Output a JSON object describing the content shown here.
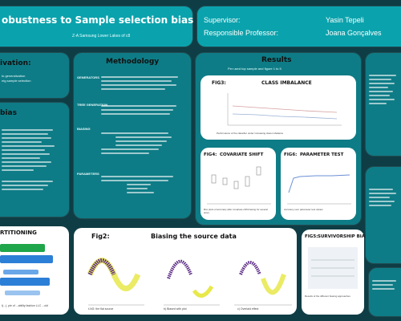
{
  "header": {
    "title": "obustness to Sample selection bias",
    "subtitle": "Z-A Samsung Lower Lakes of c8",
    "supervisor_label": "Supervisor:",
    "professor_label": "Responsible Professor:",
    "supervisor_name": "Yasin Tepeli",
    "professor_name": "Joana Gonçalves"
  },
  "left": {
    "motivation_title": "ivation:",
    "motivation_lines": [
      "to generalization",
      "ntg sample selection"
    ],
    "bias_title": "bias",
    "partitioning_title": "RTITIONING",
    "partitioning_caption": "t(...), pie of ...ability fashion LLC ...old"
  },
  "methodology": {
    "title": "Methodology",
    "labels": [
      "GENERATORS",
      "TREE GENERATION",
      "BIASING",
      "PARAMETERS"
    ],
    "items": [
      "Imbalanced",
      "Covariate",
      "Knn",
      "Parameter",
      "Dataset",
      "Gaussian",
      "Flat KNN",
      "Ruled-out K-NN",
      "Bins: Linear",
      "Sample: Bins",
      "Parameter",
      "Combo",
      "Single",
      "All 1K, 0%"
    ]
  },
  "fig2": {
    "title": "Fig2:",
    "subtitle": "Biasing the source data",
    "captions": [
      "t-NG: the flat source",
      "b) Biased with plot",
      "c) Overlaid effect"
    ]
  },
  "results": {
    "title": "Results",
    "subtitle": "Per used top sample and figure 1 to 5",
    "fig3_label": "FIG3:",
    "fig3_title": "CLASS IMBALANCE",
    "fig3_caption": "Performance of the classifier under increasing class imbalance",
    "fig4_label": "FIG4:",
    "fig4_title": "COVARIATE SHIFT",
    "fig4_caption": "Box plots of accuracy after covariate shift biasing for several sizes",
    "fig5_label": "FIG5:",
    "fig5_title": "SURVIVORSHIP BIAS",
    "fig5_caption": "Results of the different biasing approaches",
    "fig6_label": "FIG6:",
    "fig6_title": "PARAMETER TEST",
    "fig6_caption": "Accuracy over parameter test values"
  },
  "colors": {
    "background": "#0f3d45",
    "panel": "#0e7c86",
    "banner": "#0aa3ad",
    "white": "#ffffff",
    "purple": "#5b2a86",
    "yellow": "#e8e84a"
  }
}
